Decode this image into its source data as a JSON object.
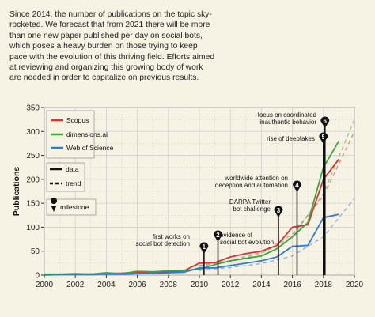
{
  "caption": "Since 2014, the number of publications on the topic sky-rocketed. We forecast that from 2021 there will be more than one new paper published per day on social bots, which poses a heavy burden on those trying to keep pace with the evolution of this thriving field. Efforts aimed at reviewing and organizing this growing body of work are needed in order to capitalize on previous results.",
  "colors": {
    "scopus": "#e03030",
    "dimensions": "#3aa63a",
    "wos": "#2f7ad6",
    "grid": "#cfcfcf",
    "plot_bg": "#f7f3e4"
  },
  "chart_data": {
    "type": "line",
    "title": "",
    "xlabel": "",
    "ylabel": "Publications",
    "xlim": [
      2000,
      2020
    ],
    "ylim": [
      0,
      350
    ],
    "xticks": [
      2000,
      2002,
      2004,
      2006,
      2008,
      2010,
      2012,
      2014,
      2016,
      2018,
      2020
    ],
    "yticks": [
      0,
      50,
      100,
      150,
      200,
      250,
      300,
      350
    ],
    "grid": true,
    "legend_position": "top-left",
    "legend": {
      "series": [
        "Scopus",
        "dimensions.ai",
        "Web of Science"
      ],
      "data_label": "data",
      "trend_label": "trend",
      "milestone_label": "milestone"
    },
    "series": [
      {
        "name": "Scopus",
        "color": "#e03030",
        "x": [
          2000,
          2001,
          2002,
          2003,
          2004,
          2005,
          2006,
          2007,
          2008,
          2009,
          2010,
          2011,
          2012,
          2013,
          2014,
          2015,
          2016,
          2017,
          2018,
          2019
        ],
        "y": [
          1,
          1,
          2,
          2,
          3,
          4,
          6,
          5,
          7,
          9,
          25,
          26,
          38,
          45,
          50,
          62,
          100,
          105,
          200,
          242
        ],
        "trend_x": [
          2010,
          2012,
          2014,
          2016,
          2018,
          2020
        ],
        "trend_y": [
          20,
          30,
          48,
          85,
          165,
          300
        ]
      },
      {
        "name": "dimensions.ai",
        "color": "#3aa63a",
        "x": [
          2000,
          2001,
          2002,
          2003,
          2004,
          2005,
          2006,
          2007,
          2008,
          2009,
          2010,
          2011,
          2012,
          2013,
          2014,
          2015,
          2016,
          2017,
          2018,
          2019
        ],
        "y": [
          2,
          2,
          3,
          2,
          5,
          3,
          8,
          7,
          9,
          10,
          12,
          22,
          30,
          35,
          40,
          55,
          80,
          110,
          225,
          280
        ],
        "trend_x": [
          2010,
          2012,
          2014,
          2016,
          2018,
          2020
        ],
        "trend_y": [
          18,
          28,
          45,
          80,
          170,
          325
        ]
      },
      {
        "name": "Web of Science",
        "color": "#2f7ad6",
        "x": [
          2000,
          2001,
          2002,
          2003,
          2004,
          2005,
          2006,
          2007,
          2008,
          2009,
          2010,
          2011,
          2012,
          2013,
          2014,
          2015,
          2016,
          2017,
          2018,
          2019
        ],
        "y": [
          0,
          1,
          1,
          1,
          2,
          2,
          3,
          4,
          5,
          6,
          15,
          15,
          20,
          25,
          30,
          38,
          60,
          62,
          120,
          127
        ],
        "trend_x": [
          2010,
          2012,
          2014,
          2016,
          2018,
          2020
        ],
        "trend_y": [
          10,
          16,
          24,
          40,
          80,
          160
        ]
      }
    ],
    "milestones": [
      {
        "number": "1",
        "year": 2010.3,
        "label": "first works on social bot detection"
      },
      {
        "number": "2",
        "year": 2011.2,
        "label": "evidence of social bot evolution"
      },
      {
        "number": "3",
        "year": 2015.1,
        "label": "DARPA Twitter bot challenge"
      },
      {
        "number": "4",
        "year": 2016.3,
        "label": "worldwide attention on deception and automation"
      },
      {
        "number": "5",
        "year": 2018.0,
        "label": "rise of deepfakes"
      },
      {
        "number": "6",
        "year": 2018.1,
        "label": "focus on coordinated inauthentic behavior"
      }
    ]
  }
}
